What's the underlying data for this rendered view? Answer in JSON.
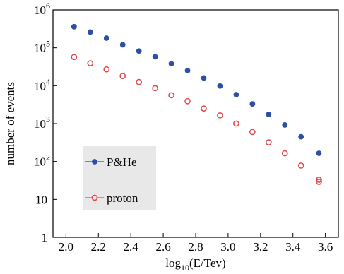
{
  "chart_data": {
    "type": "scatter",
    "xlabel": "log10(E/Tev)",
    "xlabel_parts": {
      "prefix": "log",
      "subscript": "10",
      "suffix": "(E/Tev)"
    },
    "ylabel": "number of events",
    "xlim": [
      1.92,
      3.68
    ],
    "ylim": [
      1,
      1000000
    ],
    "yscale": "log",
    "grid": false,
    "legend_position": "lower-left",
    "x_ticks": [
      "2.0",
      "2.2",
      "2.4",
      "2.6",
      "2.8",
      "3.0",
      "3.2",
      "3.4",
      "3.6"
    ],
    "y_ticks": [
      {
        "value": 1,
        "base": "1",
        "exp": ""
      },
      {
        "value": 10,
        "base": "10",
        "exp": ""
      },
      {
        "value": 100,
        "base": "10",
        "exp": "2"
      },
      {
        "value": 1000,
        "base": "10",
        "exp": "3"
      },
      {
        "value": 10000,
        "base": "10",
        "exp": "4"
      },
      {
        "value": 100000,
        "base": "10",
        "exp": "5"
      },
      {
        "value": 1000000,
        "base": "10",
        "exp": "6"
      }
    ],
    "series": [
      {
        "name": "P&He",
        "color": "#2e4fa8",
        "marker": "filled-circle",
        "x": [
          2.05,
          2.15,
          2.25,
          2.35,
          2.45,
          2.55,
          2.65,
          2.75,
          2.85,
          2.95,
          3.05,
          3.15,
          3.25,
          3.35,
          3.45,
          3.56
        ],
        "y": [
          360000,
          260000,
          180000,
          120000,
          82000,
          58000,
          38000,
          25000,
          16000,
          9800,
          5800,
          3300,
          1750,
          920,
          450,
          165
        ]
      },
      {
        "name": "proton",
        "color": "#e0474c",
        "marker": "open-circle",
        "x": [
          2.05,
          2.15,
          2.25,
          2.35,
          2.45,
          2.55,
          2.65,
          2.75,
          2.85,
          2.95,
          3.05,
          3.15,
          3.25,
          3.35,
          3.45,
          3.56,
          3.56
        ],
        "y": [
          57000,
          39000,
          27000,
          18000,
          12500,
          8600,
          5600,
          3900,
          2500,
          1650,
          1000,
          600,
          320,
          165,
          78,
          33,
          29
        ]
      }
    ]
  }
}
